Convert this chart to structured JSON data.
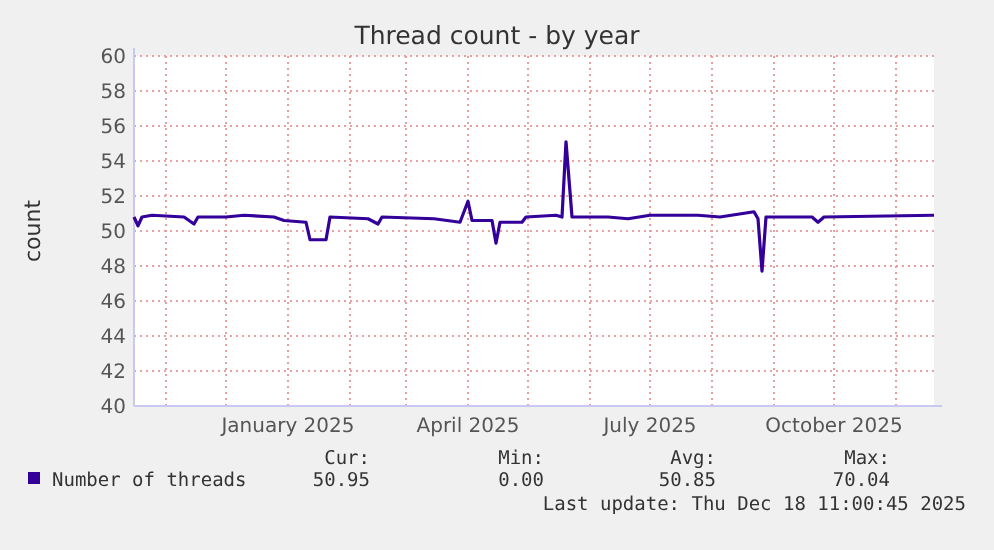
{
  "chart_data": {
    "type": "line",
    "title": "Thread count - by year",
    "ylabel": "count",
    "x": [
      "2024-10-16",
      "2024-10-18",
      "2024-10-20",
      "2024-10-25",
      "2024-11-10",
      "2024-11-15",
      "2024-11-17",
      "2024-12-01",
      "2024-12-10",
      "2024-12-25",
      "2024-12-30",
      "2025-01-10",
      "2025-01-12",
      "2025-01-20",
      "2025-01-22",
      "2025-02-10",
      "2025-02-15",
      "2025-02-17",
      "2025-03-15",
      "2025-03-28",
      "2025-04-01",
      "2025-04-03",
      "2025-04-13",
      "2025-04-15",
      "2025-04-17",
      "2025-04-28",
      "2025-04-30",
      "2025-05-15",
      "2025-05-18",
      "2025-05-20",
      "2025-05-23",
      "2025-06-10",
      "2025-06-20",
      "2025-07-01",
      "2025-07-25",
      "2025-08-05",
      "2025-08-22",
      "2025-08-24",
      "2025-08-26",
      "2025-08-28",
      "2025-09-20",
      "2025-09-23",
      "2025-09-26",
      "2025-11-20"
    ],
    "series": [
      {
        "name": "Number of threads",
        "color": "#330099",
        "values": [
          50.8,
          50.3,
          50.8,
          50.9,
          50.8,
          50.4,
          50.8,
          50.8,
          50.9,
          50.8,
          50.6,
          50.5,
          49.5,
          49.5,
          50.8,
          50.7,
          50.4,
          50.8,
          50.7,
          50.5,
          51.7,
          50.6,
          50.6,
          49.3,
          50.5,
          50.5,
          50.8,
          50.9,
          50.8,
          55.1,
          50.8,
          50.8,
          50.7,
          50.9,
          50.9,
          50.8,
          51.1,
          50.7,
          47.7,
          50.8,
          50.8,
          50.5,
          50.8,
          50.9
        ]
      }
    ],
    "xlim": [
      "2024-10-16",
      "2025-11-20"
    ],
    "xticks": [
      {
        "value": "2024-11-01",
        "label": null
      },
      {
        "value": "2024-12-01",
        "label": null
      },
      {
        "value": "2025-01-01",
        "label": "January 2025"
      },
      {
        "value": "2025-02-01",
        "label": null
      },
      {
        "value": "2025-03-01",
        "label": null
      },
      {
        "value": "2025-04-01",
        "label": "April 2025"
      },
      {
        "value": "2025-05-01",
        "label": null
      },
      {
        "value": "2025-06-01",
        "label": null
      },
      {
        "value": "2025-07-01",
        "label": "July 2025"
      },
      {
        "value": "2025-08-01",
        "label": null
      },
      {
        "value": "2025-09-01",
        "label": null
      },
      {
        "value": "2025-10-01",
        "label": "October 2025"
      },
      {
        "value": "2025-11-01",
        "label": null
      }
    ],
    "ylim": [
      40,
      60
    ],
    "yticks": [
      40,
      42,
      44,
      46,
      48,
      50,
      52,
      54,
      56,
      58,
      60
    ],
    "grid": true,
    "legend": "bottom left",
    "line_style": "solid",
    "marker": "none",
    "annotations": [
      "Cur:",
      "Min:",
      "Avg:",
      "Max:",
      "50.95",
      "0.00",
      "50.85",
      "70.04",
      "Last update: Thu Dec 18 11:00:45 2025"
    ]
  }
}
